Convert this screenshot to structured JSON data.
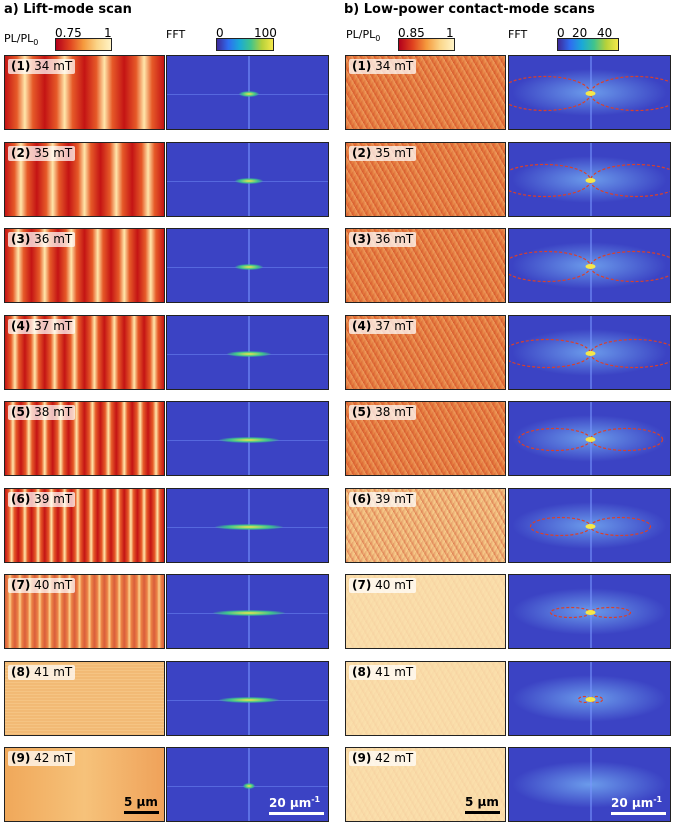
{
  "panel_a": {
    "title": "a) Lift-mode scan",
    "pl_label_base": "PL/PL",
    "pl_label_sub": "0",
    "pl_ticks": [
      "0.75",
      "1"
    ],
    "fft_label": "FFT",
    "fft_ticks": [
      "0",
      "100"
    ],
    "scalebar_real": "5 µm",
    "scalebar_fft": "20 µm",
    "scalebar_fft_sup": "-1"
  },
  "panel_b": {
    "title": "b) Low-power contact-mode scans",
    "pl_label_base": "PL/PL",
    "pl_label_sub": "0",
    "pl_ticks": [
      "0.85",
      "1"
    ],
    "fft_label": "FFT",
    "fft_ticks": [
      "0",
      "20",
      "40"
    ],
    "scalebar_real": "5 µm",
    "scalebar_fft": "20 µm",
    "scalebar_fft_sup": "-1"
  },
  "rows": [
    {
      "index": "(1)",
      "field": "34 mT"
    },
    {
      "index": "(2)",
      "field": "35 mT"
    },
    {
      "index": "(3)",
      "field": "36 mT"
    },
    {
      "index": "(4)",
      "field": "37 mT"
    },
    {
      "index": "(5)",
      "field": "38 mT"
    },
    {
      "index": "(6)",
      "field": "39 mT"
    },
    {
      "index": "(7)",
      "field": "40 mT"
    },
    {
      "index": "(8)",
      "field": "41 mT"
    },
    {
      "index": "(9)",
      "field": "42 mT"
    }
  ],
  "colors": {
    "pl_low": "#b3001b",
    "pl_high": "#fff3c6",
    "fft_bg": "#3b43c4",
    "fft_peak": "#f5e84a",
    "ellipse": "#d9402b"
  }
}
